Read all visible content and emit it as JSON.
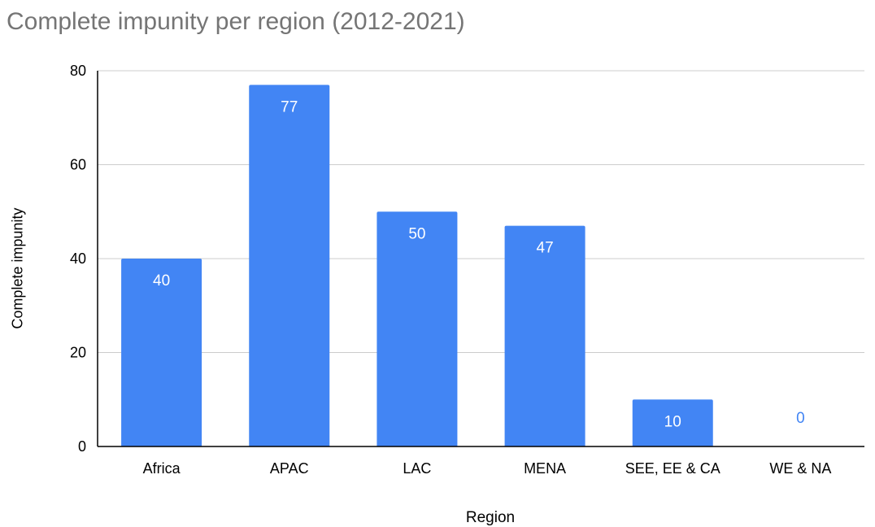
{
  "chart_data": {
    "type": "bar",
    "title": "Complete impunity per region (2012-2021)",
    "xlabel": "Region",
    "ylabel": "Complete impunity",
    "categories": [
      "Africa",
      "APAC",
      "LAC",
      "MENA",
      "SEE, EE & CA",
      "WE & NA"
    ],
    "values": [
      40,
      77,
      50,
      47,
      10,
      0
    ],
    "data_labels": [
      "40",
      "77",
      "50",
      "47",
      "10",
      "0"
    ],
    "ylim": [
      0,
      80
    ],
    "yticks": [
      0,
      20,
      40,
      60,
      80
    ],
    "ytick_labels": [
      "0",
      "20",
      "40",
      "60",
      "80"
    ],
    "grid": true,
    "legend": "none",
    "colors": {
      "bar": "#4285f4",
      "label_inside": "#ffffff",
      "label_outside": "#4285f4",
      "grid": "#cccccc",
      "axis": "#000000",
      "title": "#757575"
    }
  }
}
